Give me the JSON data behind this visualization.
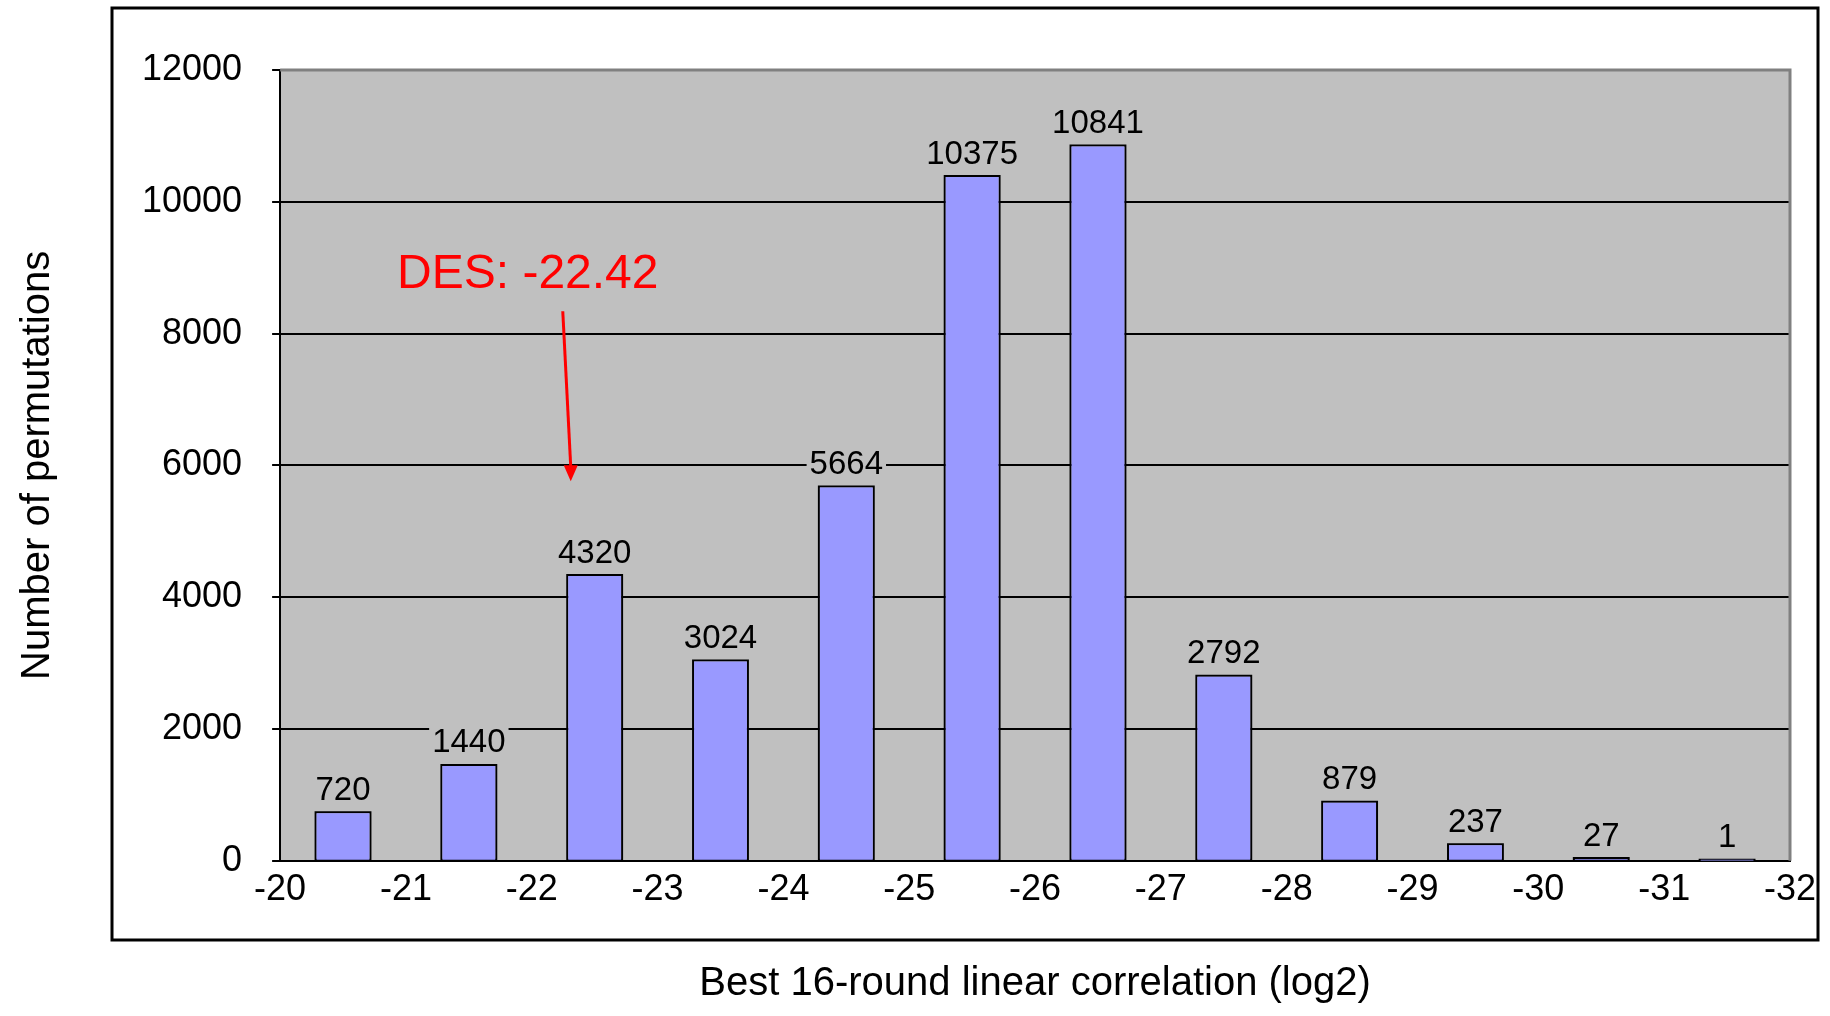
{
  "chart_data": {
    "type": "histogram",
    "xlabel": "Best 16-round linear correlation (log2)",
    "ylabel": "Number of permutations",
    "bins": [
      -20,
      -21,
      -22,
      -23,
      -24,
      -25,
      -26,
      -27,
      -28,
      -29,
      -30,
      -31,
      -32
    ],
    "values": [
      720,
      1440,
      4320,
      3024,
      5664,
      10375,
      10841,
      2792,
      879,
      237,
      27,
      1
    ],
    "color": "#9999ff",
    "xlim": [
      -20,
      -32
    ],
    "xticks": [
      -20,
      -21,
      -22,
      -23,
      -24,
      -25,
      -26,
      -27,
      -28,
      -29,
      -30,
      -31,
      -32
    ],
    "ylim": [
      0,
      12000
    ],
    "yticks": [
      0,
      2000,
      4000,
      6000,
      8000,
      10000,
      12000
    ],
    "grid": "y",
    "data_labels": true,
    "annotations": [
      "DES: -22.42"
    ]
  }
}
